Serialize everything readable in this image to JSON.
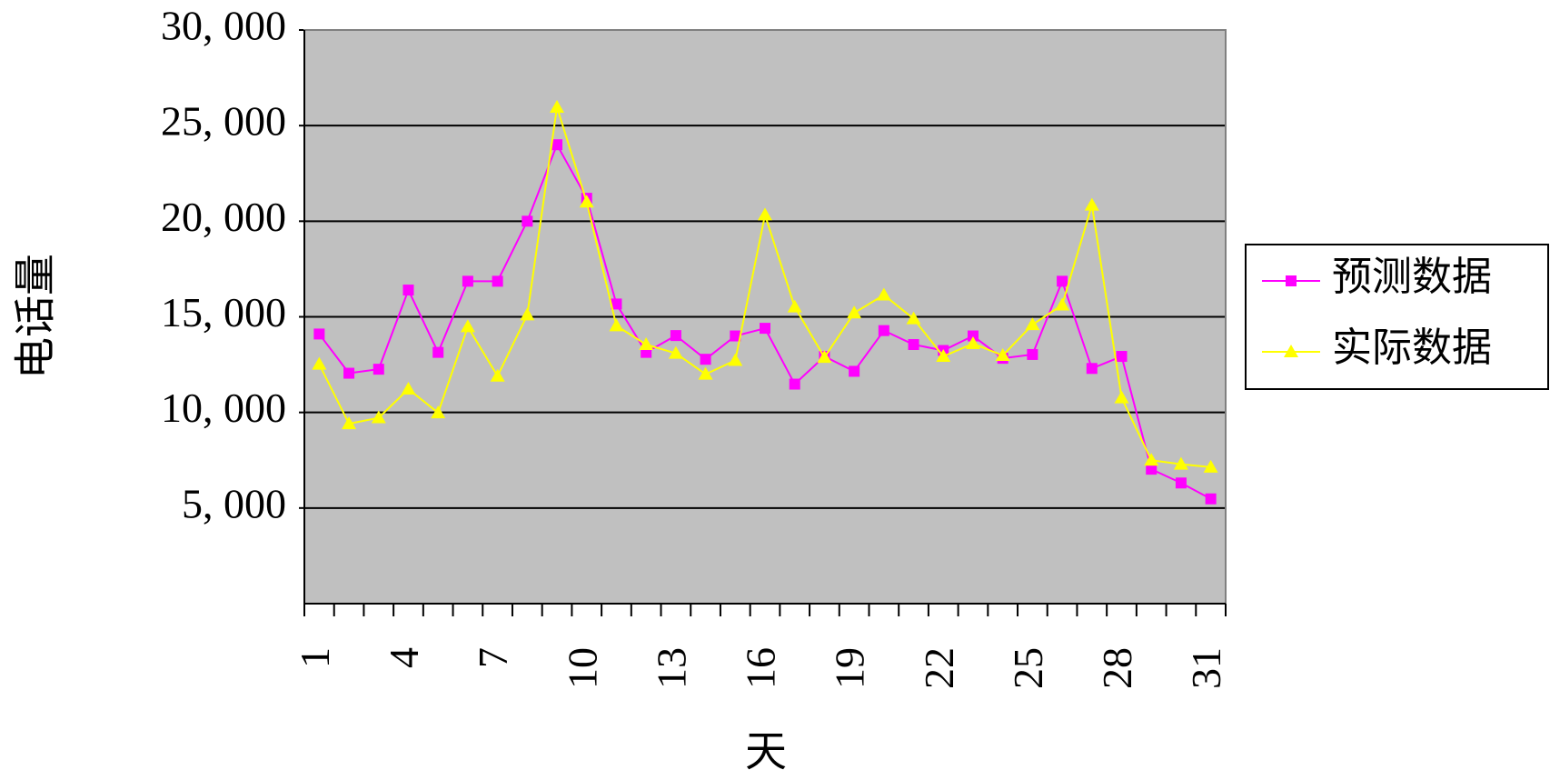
{
  "chart_data": {
    "type": "line",
    "y_label": "电话量",
    "x_label": "天",
    "categories": [
      "1",
      null,
      null,
      "4",
      null,
      null,
      "7",
      null,
      null,
      "10",
      null,
      null,
      "13",
      null,
      null,
      "16",
      null,
      null,
      "19",
      null,
      null,
      "22",
      null,
      null,
      "25",
      null,
      null,
      "28",
      null,
      null,
      "31"
    ],
    "series": [
      {
        "name": "预测数据",
        "color": "#ff00ff",
        "marker": "square",
        "values": [
          14100,
          12050,
          12260,
          16400,
          13140,
          16860,
          16860,
          20000,
          24000,
          21200,
          15670,
          13140,
          14020,
          12780,
          14000,
          14400,
          11480,
          12930,
          12150,
          14280,
          13550,
          13240,
          14000,
          12830,
          13030,
          16860,
          12300,
          12930,
          7030,
          6310,
          5480
        ]
      },
      {
        "name": "实际数据",
        "color": "#ffff00",
        "marker": "triangle",
        "values": [
          12520,
          9410,
          9720,
          11220,
          9980,
          14480,
          11900,
          15100,
          25960,
          21000,
          14530,
          13550,
          13090,
          12000,
          12720,
          20330,
          15520,
          12880,
          15200,
          16140,
          14900,
          12930,
          13600,
          12980,
          14590,
          15620,
          20840,
          10760,
          7500,
          7290,
          7140
        ]
      }
    ],
    "ylim": [
      0,
      30000
    ],
    "yticks": [
      {
        "value": 5000,
        "label": "5, 000"
      },
      {
        "value": 10000,
        "label": "10, 000"
      },
      {
        "value": 15000,
        "label": "15, 000"
      },
      {
        "value": 20000,
        "label": "20, 000"
      },
      {
        "value": 25000,
        "label": "25, 000"
      },
      {
        "value": 30000,
        "label": "30, 000"
      }
    ],
    "grid": true,
    "plot_background": "#c0c0c0",
    "legend": "right"
  }
}
